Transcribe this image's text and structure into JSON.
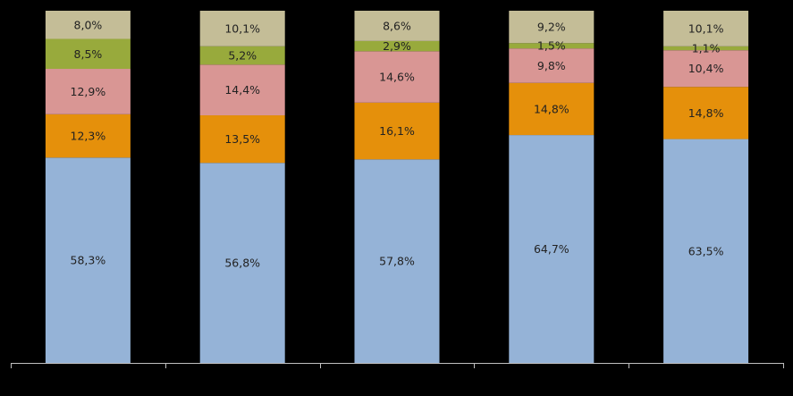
{
  "chart_data": {
    "type": "bar",
    "stacked": true,
    "title": "",
    "xlabel": "",
    "ylabel": "",
    "categories": [
      "",
      "",
      "",
      "",
      ""
    ],
    "ylim": [
      0,
      100
    ],
    "grid": false,
    "legend": "none",
    "series": [
      {
        "color": "#95b3d7",
        "values": [
          58.3,
          56.8,
          57.8,
          64.7,
          63.5
        ],
        "labels": [
          "58,3%",
          "56,8%",
          "57,8%",
          "64,7%",
          "63,5%"
        ]
      },
      {
        "color": "#e5900b",
        "values": [
          12.3,
          13.5,
          16.1,
          14.8,
          14.8
        ],
        "labels": [
          "12,3%",
          "13,5%",
          "16,1%",
          "14,8%",
          "14,8%"
        ]
      },
      {
        "color": "#d99694",
        "values": [
          12.9,
          14.4,
          14.6,
          9.8,
          10.4
        ],
        "labels": [
          "12,9%",
          "14,4%",
          "14,6%",
          "9,8%",
          "10,4%"
        ]
      },
      {
        "color": "#98aa3c",
        "values": [
          8.5,
          5.2,
          2.9,
          1.5,
          1.1
        ],
        "labels": [
          "8,5%",
          "5,2%",
          "2,9%",
          "1,5%",
          "1,1%"
        ]
      },
      {
        "color": "#c4bd97",
        "values": [
          8.0,
          10.1,
          8.6,
          9.2,
          10.1
        ],
        "labels": [
          "8,0%",
          "10,1%",
          "8,6%",
          "9,2%",
          "10,1%"
        ]
      }
    ]
  }
}
